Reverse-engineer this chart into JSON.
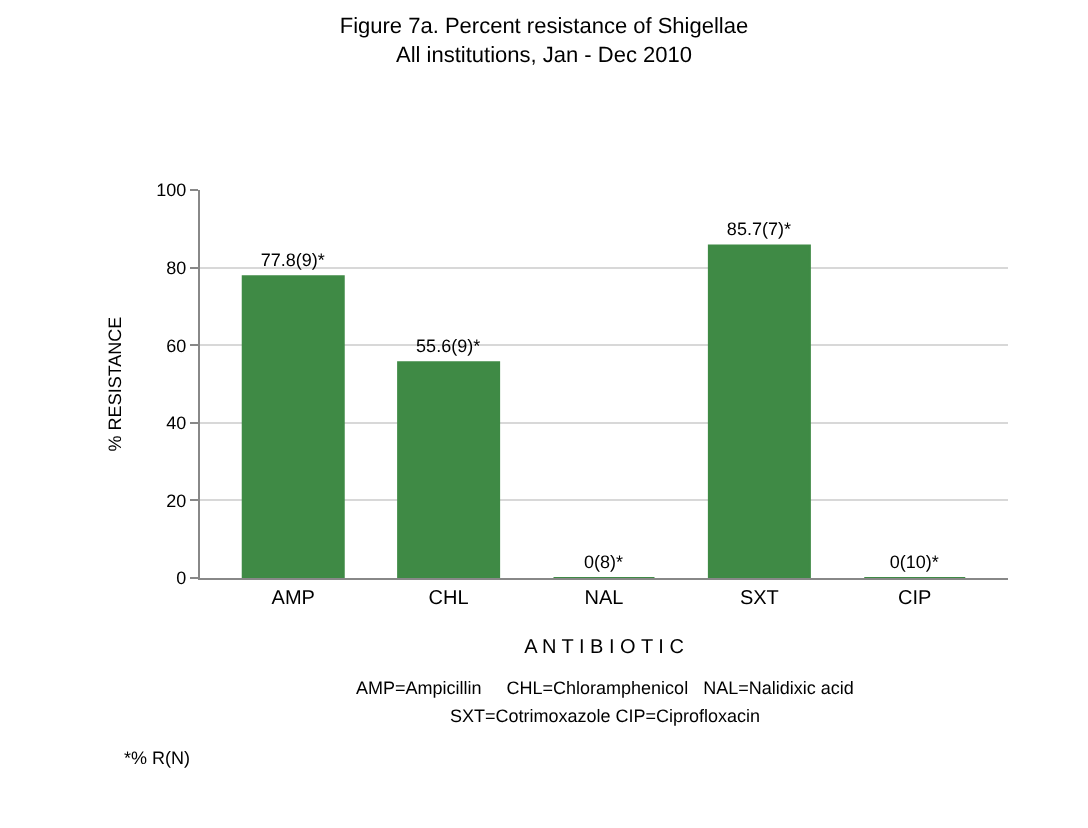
{
  "chart_data": {
    "type": "bar",
    "title": "Figure 7a. Percent resistance of Shigellae\nAll institutions, Jan - Dec 2010",
    "xlabel": "A N T I B I O T I C",
    "ylabel": "% RESISTANCE",
    "categories": [
      "AMP",
      "CHL",
      "NAL",
      "SXT",
      "CIP"
    ],
    "values": [
      77.8,
      55.6,
      0,
      85.7,
      0
    ],
    "value_labels": [
      "77.8(9)*",
      "55.6(9)*",
      "0(8)*",
      "85.7(7)*",
      "0(10)*"
    ],
    "color": "#3f8a45",
    "ylim": [
      0,
      100
    ],
    "yticks": [
      0,
      20,
      40,
      60,
      80,
      100
    ],
    "grid": "y",
    "annotations": [
      "AMP=Ampicillin     CHL=Chloramphenicol   NAL=Nalidixic acid",
      "SXT=Cotrimoxazole CIP=Ciprofloxacin",
      "*% R(N)"
    ]
  }
}
